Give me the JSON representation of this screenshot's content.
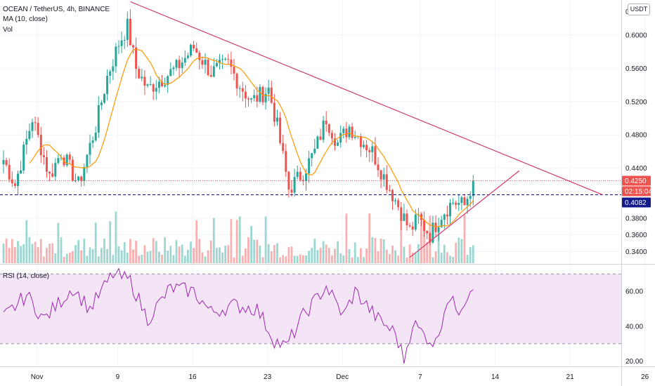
{
  "header": {
    "symbol_line": "OCEAN / TetherUS, 4h, BINANCE",
    "ma_label": "MA (10, close)",
    "vol_label": "Vol",
    "currency_button": "USDT"
  },
  "rsi": {
    "label": "RSI (14, close)",
    "upper_band": 70,
    "lower_band": 30,
    "ticks": [
      "60.00",
      "40.00",
      "20.00"
    ]
  },
  "colors": {
    "up": "#26a69a",
    "down": "#ef5350",
    "ma": "#ff9800",
    "rsi_line": "#9c27b0",
    "rsi_band": "#f3e5f5",
    "trendline": "#d0376b",
    "price_tag": "#ef5350",
    "ref_tag": "#131a8c"
  },
  "chart_data": {
    "type": "candlestick",
    "title": "OCEAN / TetherUS, 4h, BINANCE",
    "price_axis": {
      "ticks": [
        "0.6000",
        "0.5600",
        "0.5200",
        "0.4800",
        "0.4400",
        "0.3800",
        "0.3600",
        "0.3400"
      ],
      "top_partial": "0",
      "ylim": [
        0.326,
        0.642
      ]
    },
    "x_axis": {
      "ticks": [
        "Nov",
        "9",
        "16",
        "23",
        "Dec",
        "7",
        "14",
        "21",
        "26"
      ]
    },
    "last_price": "0.4250",
    "countdown": "02:15:04",
    "reference_level": "0.4082",
    "candle_count": 164,
    "key_prices": [
      {
        "index": 0,
        "price": 0.45
      },
      {
        "index": 4,
        "price": 0.42
      },
      {
        "index": 10,
        "price": 0.5
      },
      {
        "index": 16,
        "price": 0.43
      },
      {
        "index": 20,
        "price": 0.46
      },
      {
        "index": 26,
        "price": 0.42
      },
      {
        "index": 32,
        "price": 0.49
      },
      {
        "index": 36,
        "price": 0.55
      },
      {
        "index": 40,
        "price": 0.59
      },
      {
        "index": 43,
        "price": 0.61
      },
      {
        "index": 46,
        "price": 0.56
      },
      {
        "index": 50,
        "price": 0.535
      },
      {
        "index": 56,
        "price": 0.55
      },
      {
        "index": 60,
        "price": 0.56
      },
      {
        "index": 66,
        "price": 0.585
      },
      {
        "index": 72,
        "price": 0.555
      },
      {
        "index": 78,
        "price": 0.565
      },
      {
        "index": 82,
        "price": 0.54
      },
      {
        "index": 86,
        "price": 0.52
      },
      {
        "index": 92,
        "price": 0.535
      },
      {
        "index": 95,
        "price": 0.49
      },
      {
        "index": 99,
        "price": 0.415
      },
      {
        "index": 104,
        "price": 0.435
      },
      {
        "index": 108,
        "price": 0.46
      },
      {
        "index": 112,
        "price": 0.5
      },
      {
        "index": 116,
        "price": 0.47
      },
      {
        "index": 120,
        "price": 0.49
      },
      {
        "index": 124,
        "price": 0.475
      },
      {
        "index": 128,
        "price": 0.46
      },
      {
        "index": 132,
        "price": 0.43
      },
      {
        "index": 137,
        "price": 0.395
      },
      {
        "index": 141,
        "price": 0.365
      },
      {
        "index": 144,
        "price": 0.38
      },
      {
        "index": 148,
        "price": 0.36
      },
      {
        "index": 152,
        "price": 0.385
      },
      {
        "index": 156,
        "price": 0.4
      },
      {
        "index": 160,
        "price": 0.395
      },
      {
        "index": 163,
        "price": 0.425
      }
    ],
    "rsi_key_values": [
      {
        "index": 0,
        "value": 45
      },
      {
        "index": 8,
        "value": 58
      },
      {
        "index": 14,
        "value": 44
      },
      {
        "index": 24,
        "value": 62
      },
      {
        "index": 30,
        "value": 50
      },
      {
        "index": 38,
        "value": 70
      },
      {
        "index": 44,
        "value": 66
      },
      {
        "index": 50,
        "value": 44
      },
      {
        "index": 58,
        "value": 62
      },
      {
        "index": 66,
        "value": 60
      },
      {
        "index": 72,
        "value": 48
      },
      {
        "index": 80,
        "value": 52
      },
      {
        "index": 88,
        "value": 50
      },
      {
        "index": 94,
        "value": 32
      },
      {
        "index": 98,
        "value": 28
      },
      {
        "index": 104,
        "value": 46
      },
      {
        "index": 112,
        "value": 63
      },
      {
        "index": 118,
        "value": 46
      },
      {
        "index": 122,
        "value": 60
      },
      {
        "index": 130,
        "value": 44
      },
      {
        "index": 136,
        "value": 36
      },
      {
        "index": 139,
        "value": 21
      },
      {
        "index": 142,
        "value": 42
      },
      {
        "index": 146,
        "value": 35
      },
      {
        "index": 150,
        "value": 30
      },
      {
        "index": 154,
        "value": 56
      },
      {
        "index": 158,
        "value": 50
      },
      {
        "index": 161,
        "value": 58
      },
      {
        "index": 163,
        "value": 65
      }
    ],
    "trendlines": [
      {
        "name": "descending",
        "from": {
          "index": 44,
          "price": 0.64
        },
        "to": {
          "index": 208,
          "price": 0.408
        }
      },
      {
        "name": "ascending",
        "from": {
          "index": 141,
          "price": 0.333
        },
        "to": {
          "index": 179,
          "price": 0.437
        }
      }
    ],
    "rsi_ylim": [
      17,
      75
    ]
  }
}
